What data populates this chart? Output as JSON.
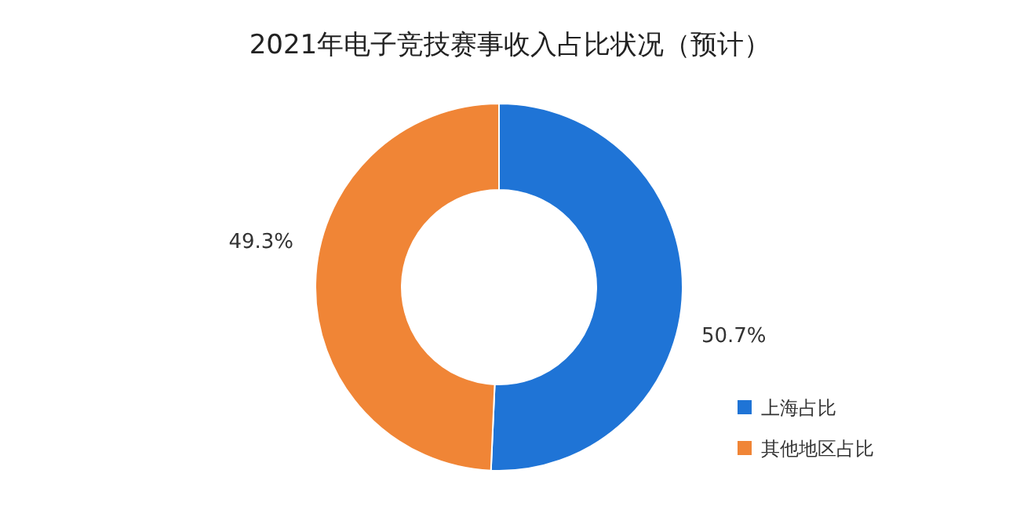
{
  "chart_data": {
    "type": "donut",
    "title": "2021年电子竞技赛事收入占比状况（预计）",
    "categories": [
      "上海占比",
      "其他地区占比"
    ],
    "values": [
      50.7,
      49.3
    ],
    "value_labels": [
      "50.7%",
      "49.3%"
    ],
    "colors": [
      "#1f74d6",
      "#f08536"
    ],
    "legend": "bottom right"
  }
}
